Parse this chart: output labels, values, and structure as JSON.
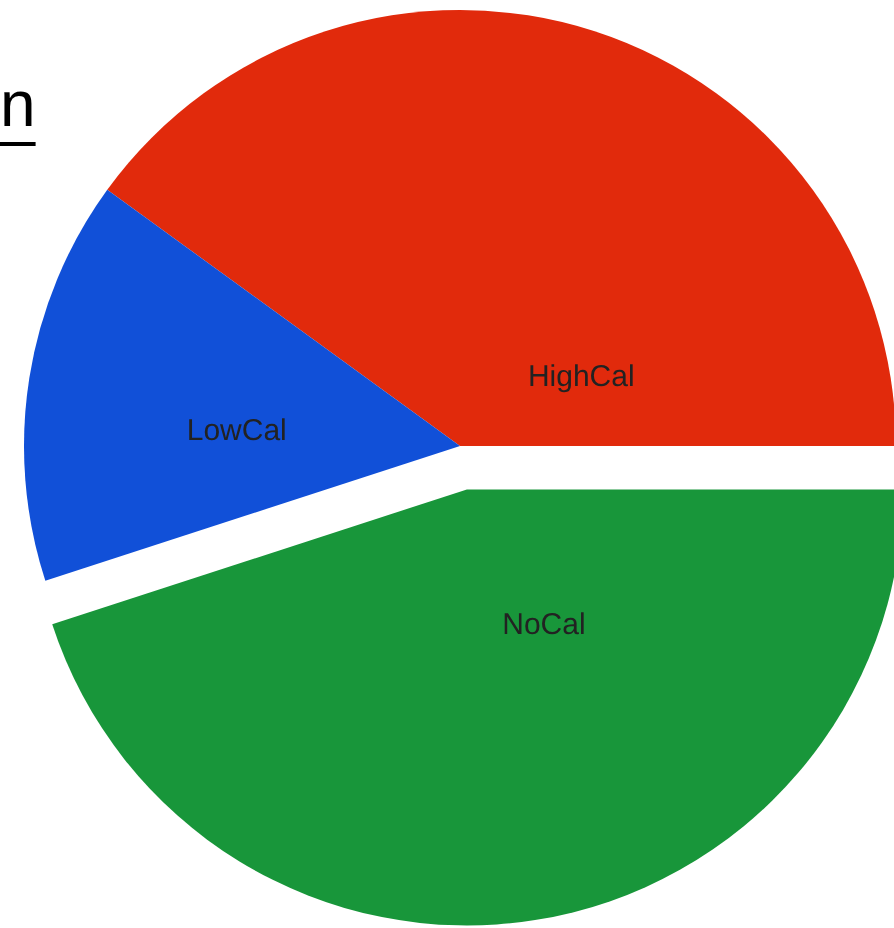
{
  "chart_data": {
    "type": "pie",
    "title": "n",
    "categories": [
      "HighCal",
      "LowCal",
      "NoCal"
    ],
    "values": [
      40,
      15,
      45
    ],
    "colors": [
      "#e12a0c",
      "#1150d8",
      "#18963a"
    ]
  }
}
